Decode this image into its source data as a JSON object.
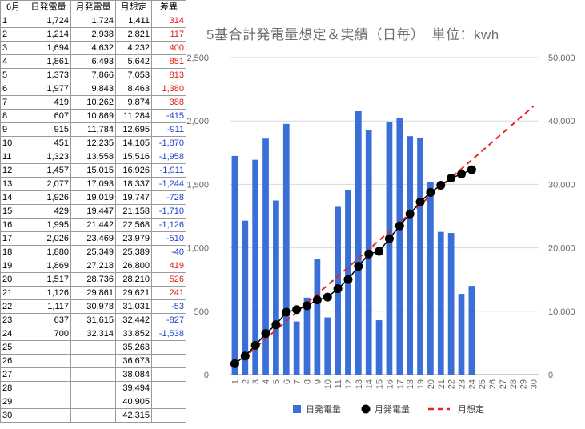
{
  "sheet": {
    "headers": [
      "6月",
      "日発電量",
      "月発電量",
      "月想定",
      "差異"
    ],
    "rows": [
      [
        "1",
        "1,724",
        "1,724",
        "1,411",
        "314"
      ],
      [
        "2",
        "1,214",
        "2,938",
        "2,821",
        "117"
      ],
      [
        "3",
        "1,694",
        "4,632",
        "4,232",
        "400"
      ],
      [
        "4",
        "1,861",
        "6,493",
        "5,642",
        "851"
      ],
      [
        "5",
        "1,373",
        "7,866",
        "7,053",
        "813"
      ],
      [
        "6",
        "1,977",
        "9,843",
        "8,463",
        "1,380"
      ],
      [
        "7",
        "419",
        "10,262",
        "9,874",
        "388"
      ],
      [
        "8",
        "607",
        "10,869",
        "11,284",
        "-415"
      ],
      [
        "9",
        "915",
        "11,784",
        "12,695",
        "-911"
      ],
      [
        "10",
        "451",
        "12,235",
        "14,105",
        "-1,870"
      ],
      [
        "11",
        "1,323",
        "13,558",
        "15,516",
        "-1,958"
      ],
      [
        "12",
        "1,457",
        "15,015",
        "16,926",
        "-1,911"
      ],
      [
        "13",
        "2,077",
        "17,093",
        "18,337",
        "-1,244"
      ],
      [
        "14",
        "1,926",
        "19,019",
        "19,747",
        "-728"
      ],
      [
        "15",
        "429",
        "19,447",
        "21,158",
        "-1,710"
      ],
      [
        "16",
        "1,995",
        "21,442",
        "22,568",
        "-1,126"
      ],
      [
        "17",
        "2,026",
        "23,469",
        "23,979",
        "-510"
      ],
      [
        "18",
        "1,880",
        "25,349",
        "25,389",
        "-40"
      ],
      [
        "19",
        "1,869",
        "27,218",
        "26,800",
        "419"
      ],
      [
        "20",
        "1,517",
        "28,736",
        "28,210",
        "526"
      ],
      [
        "21",
        "1,126",
        "29,861",
        "29,621",
        "241"
      ],
      [
        "22",
        "1,117",
        "30,978",
        "31,031",
        "-53"
      ],
      [
        "23",
        "637",
        "31,615",
        "32,442",
        "-827"
      ],
      [
        "24",
        "700",
        "32,314",
        "33,852",
        "-1,538"
      ],
      [
        "25",
        "",
        "",
        "35,263",
        ""
      ],
      [
        "26",
        "",
        "",
        "36,673",
        ""
      ],
      [
        "27",
        "",
        "",
        "38,084",
        ""
      ],
      [
        "28",
        "",
        "",
        "39,494",
        ""
      ],
      [
        "29",
        "",
        "",
        "40,905",
        ""
      ],
      [
        "30",
        "",
        "",
        "42,315",
        ""
      ]
    ]
  },
  "colors": {
    "bar": "#3a6fd8",
    "line": "#000000",
    "forecast": "#e8251f",
    "positive_diff": "#e0201c",
    "negative_diff": "#1f3fcf",
    "grid": "#d9d9d9",
    "axis_text": "#666666"
  },
  "chart_data": {
    "type": "bar",
    "title": "5基合計発電量想定＆実績（日毎）　単位：kwh",
    "categories": [
      "1",
      "2",
      "3",
      "4",
      "5",
      "6",
      "7",
      "8",
      "9",
      "10",
      "11",
      "12",
      "13",
      "14",
      "15",
      "16",
      "17",
      "18",
      "19",
      "20",
      "21",
      "22",
      "23",
      "24",
      "25",
      "26",
      "27",
      "28",
      "29",
      "30"
    ],
    "series": [
      {
        "name": "日発電量",
        "type": "bar",
        "axis": "left",
        "values": [
          1724,
          1214,
          1694,
          1861,
          1373,
          1977,
          419,
          607,
          915,
          451,
          1323,
          1457,
          2077,
          1926,
          429,
          1995,
          2026,
          1880,
          1869,
          1517,
          1126,
          1117,
          637,
          700,
          null,
          null,
          null,
          null,
          null,
          null
        ]
      },
      {
        "name": "月発電量",
        "type": "line-markers",
        "axis": "right",
        "values": [
          1724,
          2938,
          4632,
          6493,
          7866,
          9843,
          10262,
          10869,
          11784,
          12235,
          13558,
          15015,
          17093,
          19019,
          19447,
          21442,
          23469,
          25349,
          27218,
          28736,
          29861,
          30978,
          31615,
          32314,
          null,
          null,
          null,
          null,
          null,
          null
        ]
      },
      {
        "name": "月想定",
        "type": "dashed-line",
        "axis": "right",
        "values": [
          1411,
          2821,
          4232,
          5642,
          7053,
          8463,
          9874,
          11284,
          12695,
          14105,
          15516,
          16926,
          18337,
          19747,
          21158,
          22568,
          23979,
          25389,
          26800,
          28210,
          29621,
          31031,
          32442,
          33852,
          35263,
          36673,
          38084,
          39494,
          40905,
          42315
        ]
      }
    ],
    "ylim_left": [
      0,
      2500
    ],
    "ylim_right": [
      0,
      50000
    ],
    "yticks_left": [
      "0",
      "500",
      "1,000",
      "1,500",
      "2,000",
      "2,500"
    ],
    "yticks_right": [
      "0",
      "10,000",
      "20,000",
      "30,000",
      "40,000",
      "50,000"
    ],
    "grid": true,
    "legend_position": "bottom"
  }
}
